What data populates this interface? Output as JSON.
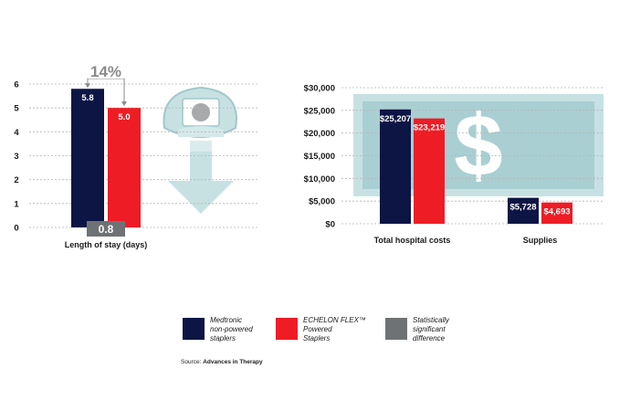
{
  "colors": {
    "medtronic": "#0d1545",
    "echelon": "#ee1c25",
    "significant": "#6f7274",
    "gridline": "#b5b5b5",
    "illustration_light": "#c7e1e3",
    "illustration_mid": "#a9cfd2"
  },
  "legend": {
    "items": [
      {
        "label": "Medtronic\nnon-powered\nstaplers",
        "color": "#0d1545"
      },
      {
        "label": "ECHELON FLEX™\nPowered\nStaplers",
        "color": "#ee1c25"
      },
      {
        "label": "Statistically\nsignificant\ndifference",
        "color": "#6f7274"
      }
    ]
  },
  "source": {
    "prefix": "Source:",
    "name": "Advances in Therapy"
  },
  "icons": {
    "left": "hospital-bed-down-arrow-icon",
    "right": "dollar-bill-icon"
  },
  "chart_data": [
    {
      "type": "bar",
      "categories": [
        "Length of stay (days)"
      ],
      "series": [
        {
          "name": "Medtronic non-powered staplers",
          "values": [
            5.8
          ],
          "labels": [
            "5.8"
          ]
        },
        {
          "name": "ECHELON FLEX™ Powered Staplers",
          "values": [
            5.0
          ],
          "labels": [
            "5.0"
          ]
        }
      ],
      "ylim": [
        0,
        6
      ],
      "yticks": [
        0,
        1,
        2,
        3,
        4,
        5,
        6
      ],
      "ytick_labels": [
        "0",
        "1",
        "2",
        "3",
        "4",
        "5",
        "6"
      ],
      "grid": true,
      "annotations": {
        "percent_difference": "14%",
        "significant_difference": "0.8"
      }
    },
    {
      "type": "bar",
      "categories": [
        "Total hospital costs",
        "Supplies"
      ],
      "series": [
        {
          "name": "Medtronic non-powered staplers",
          "values": [
            25207,
            5728
          ],
          "labels": [
            "$25,207",
            "$5,728"
          ]
        },
        {
          "name": "ECHELON FLEX™ Powered Staplers",
          "values": [
            23219,
            4693
          ],
          "labels": [
            "$23,219",
            "$4,693"
          ]
        }
      ],
      "ylim": [
        0,
        30000
      ],
      "yticks": [
        0,
        5000,
        10000,
        15000,
        20000,
        25000,
        30000
      ],
      "ytick_labels": [
        "$0",
        "$5,000",
        "$10,000",
        "$15,000",
        "$20,000",
        "$25,000",
        "$30,000"
      ],
      "grid": true
    }
  ]
}
